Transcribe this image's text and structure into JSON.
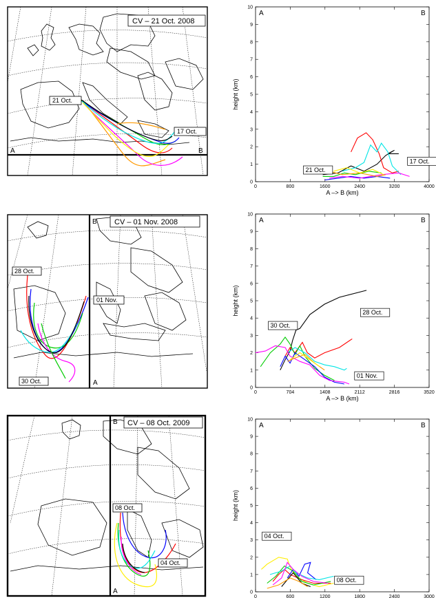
{
  "colors": {
    "black": "#000000",
    "red": "#ff0000",
    "green": "#00cc00",
    "blue": "#0000ff",
    "magenta": "#ff00ff",
    "cyan": "#00e5e5",
    "orange": "#ff9900",
    "yellow": "#ffee00"
  },
  "panels": [
    {
      "map": {
        "title": "CV – 21 Oct. 2008",
        "label_a": "A",
        "label_b": "B",
        "section_orientation": "horizontal",
        "date_start": "21 Oct.",
        "date_end": "17 Oct."
      },
      "chart_data": {
        "type": "line",
        "corner_a": "A",
        "corner_b": "B",
        "xlabel": "A –> B (km)",
        "ylabel": "height (km)",
        "xlim": [
          0,
          4000
        ],
        "ylim": [
          0,
          10
        ],
        "xticks": [
          "0",
          "800",
          "1600",
          "2400",
          "3200",
          "4000"
        ],
        "yticks": [
          "0",
          "1",
          "2",
          "3",
          "4",
          "5",
          "6",
          "7",
          "8",
          "9",
          "10"
        ],
        "annotations": [
          {
            "text": "21 Oct.",
            "x": 1150,
            "y": 0.55
          },
          {
            "text": "17 Oct.",
            "x": 3550,
            "y": 1.05
          }
        ],
        "series": [
          {
            "color": "black",
            "points": [
              [
                1550,
                0.4
              ],
              [
                1900,
                0.5
              ],
              [
                2200,
                0.9
              ],
              [
                2500,
                0.6
              ],
              [
                2800,
                1.0
              ],
              [
                3000,
                1.5
              ],
              [
                3200,
                1.8
              ],
              [
                3050,
                1.6
              ],
              [
                3300,
                1.6
              ]
            ]
          },
          {
            "color": "red",
            "points": [
              [
                2200,
                1.7
              ],
              [
                2350,
                2.5
              ],
              [
                2550,
                2.8
              ],
              [
                2700,
                2.4
              ],
              [
                2850,
                1.6
              ],
              [
                2950,
                0.8
              ],
              [
                3150,
                0.5
              ],
              [
                3300,
                0.6
              ]
            ]
          },
          {
            "color": "cyan",
            "points": [
              [
                2000,
                0.6
              ],
              [
                2300,
                0.8
              ],
              [
                2500,
                1.1
              ],
              [
                2650,
                2.1
              ],
              [
                2800,
                1.7
              ],
              [
                2900,
                2.2
              ],
              [
                3050,
                1.7
              ],
              [
                3150,
                0.9
              ],
              [
                3350,
                0.4
              ]
            ]
          },
          {
            "color": "green",
            "points": [
              [
                1550,
                0.3
              ],
              [
                1800,
                0.3
              ],
              [
                2050,
                0.5
              ],
              [
                2300,
                0.4
              ],
              [
                2600,
                0.6
              ],
              [
                2900,
                0.5
              ]
            ]
          },
          {
            "color": "blue",
            "points": [
              [
                1600,
                0.1
              ],
              [
                1900,
                0.2
              ],
              [
                2200,
                0.3
              ],
              [
                2500,
                0.2
              ],
              [
                2800,
                0.3
              ],
              [
                3100,
                0.2
              ]
            ]
          },
          {
            "color": "magenta",
            "points": [
              [
                1700,
                0.2
              ],
              [
                2000,
                0.3
              ],
              [
                2400,
                0.2
              ],
              [
                2900,
                0.4
              ],
              [
                3300,
                0.5
              ],
              [
                3550,
                0.3
              ]
            ]
          },
          {
            "color": "orange",
            "points": [
              [
                1450,
                0.9
              ],
              [
                1700,
                0.6
              ],
              [
                2000,
                0.4
              ],
              [
                2400,
                0.5
              ],
              [
                2800,
                0.3
              ],
              [
                3000,
                0.4
              ]
            ]
          },
          {
            "color": "yellow",
            "points": [
              [
                1800,
                0.6
              ],
              [
                2100,
                0.8
              ],
              [
                2400,
                0.5
              ],
              [
                2700,
                0.7
              ],
              [
                2950,
                0.4
              ]
            ]
          }
        ]
      }
    },
    {
      "map": {
        "title": "CV – 01 Nov. 2008",
        "label_a": "A",
        "label_b": "B",
        "section_orientation": "vertical",
        "date_start": "01 Nov.",
        "date_end": "28 Oct.",
        "date_other": "30 Oct."
      },
      "chart_data": {
        "type": "line",
        "corner_a": "A",
        "corner_b": "B",
        "xlabel": "A –> B (km)",
        "ylabel": "height (km)",
        "xlim": [
          0,
          3520
        ],
        "ylim": [
          0,
          10
        ],
        "xticks": [
          "0",
          "704",
          "1408",
          "2112",
          "2816",
          "3520"
        ],
        "yticks": [
          "0",
          "1",
          "2",
          "3",
          "4",
          "5",
          "6",
          "7",
          "8",
          "9",
          "10"
        ],
        "annotations": [
          {
            "text": "30 Oct.",
            "x": 300,
            "y": 3.45
          },
          {
            "text": "28 Oct.",
            "x": 2170,
            "y": 4.2
          },
          {
            "text": "01 Nov.",
            "x": 2050,
            "y": 0.55
          }
        ],
        "series": [
          {
            "color": "black",
            "points": [
              [
                500,
                1.0
              ],
              [
                600,
                1.6
              ],
              [
                700,
                2.1
              ],
              [
                750,
                2.7
              ],
              [
                820,
                3.3
              ],
              [
                900,
                3.4
              ],
              [
                1100,
                4.2
              ],
              [
                1400,
                4.8
              ],
              [
                1700,
                5.2
              ],
              [
                2250,
                5.6
              ]
            ]
          },
          {
            "color": "red",
            "points": [
              [
                600,
                1.8
              ],
              [
                700,
                2.3
              ],
              [
                800,
                2.0
              ],
              [
                950,
                2.6
              ],
              [
                1050,
                2.0
              ],
              [
                1200,
                1.7
              ],
              [
                1400,
                2.0
              ],
              [
                1700,
                2.3
              ],
              [
                1960,
                2.8
              ]
            ]
          },
          {
            "color": "green",
            "points": [
              [
                100,
                1.2
              ],
              [
                300,
                2.0
              ],
              [
                500,
                2.5
              ],
              [
                600,
                2.9
              ],
              [
                700,
                2.5
              ],
              [
                800,
                1.9
              ],
              [
                900,
                2.4
              ],
              [
                1000,
                1.8
              ],
              [
                1200,
                1.1
              ],
              [
                1400,
                0.7
              ],
              [
                1600,
                0.4
              ]
            ]
          },
          {
            "color": "cyan",
            "points": [
              [
                650,
                2.0
              ],
              [
                800,
                2.3
              ],
              [
                1000,
                2.0
              ],
              [
                1200,
                1.5
              ],
              [
                1400,
                1.3
              ],
              [
                1600,
                1.2
              ],
              [
                1800,
                1.0
              ],
              [
                1850,
                1.1
              ]
            ]
          },
          {
            "color": "blue",
            "points": [
              [
                500,
                1.2
              ],
              [
                600,
                1.8
              ],
              [
                700,
                1.4
              ],
              [
                800,
                2.0
              ],
              [
                1000,
                1.6
              ],
              [
                1200,
                1.2
              ],
              [
                1400,
                0.6
              ],
              [
                1600,
                0.3
              ],
              [
                1800,
                0.2
              ]
            ]
          },
          {
            "color": "magenta",
            "points": [
              [
                0,
                2.0
              ],
              [
                200,
                2.1
              ],
              [
                400,
                2.4
              ],
              [
                600,
                2.3
              ],
              [
                700,
                1.8
              ],
              [
                900,
                1.5
              ],
              [
                1100,
                1.3
              ],
              [
                1300,
                0.7
              ],
              [
                1500,
                0.4
              ],
              [
                1800,
                0.3
              ],
              [
                1900,
                0.2
              ]
            ]
          },
          {
            "color": "orange",
            "points": [
              [
                650,
                1.5
              ],
              [
                800,
                1.7
              ],
              [
                1000,
                1.9
              ],
              [
                1200,
                1.4
              ],
              [
                1400,
                1.0
              ]
            ]
          },
          {
            "color": "yellow",
            "points": [
              [
                700,
                1.6
              ],
              [
                900,
                2.0
              ],
              [
                1100,
                1.6
              ],
              [
                1300,
                1.2
              ]
            ]
          }
        ]
      }
    },
    {
      "map": {
        "title": "CV – 08 Oct. 2009",
        "label_a": "A",
        "label_b": "B",
        "section_orientation": "vertical",
        "date_start": "08 Oct.",
        "date_end": "04 Oct."
      },
      "chart_data": {
        "type": "line",
        "corner_a": "A",
        "corner_b": "B",
        "xlabel": "",
        "ylabel": "height (km)",
        "xlim": [
          0,
          3000
        ],
        "ylim": [
          0,
          10
        ],
        "xticks": [
          "0",
          "600",
          "1200",
          "1800",
          "2400",
          "3000"
        ],
        "yticks": [
          "0",
          "1",
          "2",
          "3",
          "4",
          "5",
          "6",
          "7",
          "8",
          "9",
          "10"
        ],
        "annotations": [
          {
            "text": "04 Oct.",
            "x": 150,
            "y": 3.1
          },
          {
            "text": "08 Oct.",
            "x": 1400,
            "y": 0.55
          }
        ],
        "series": [
          {
            "color": "yellow",
            "points": [
              [
                100,
                1.3
              ],
              [
                200,
                1.6
              ],
              [
                400,
                2.0
              ],
              [
                550,
                1.9
              ],
              [
                600,
                1.4
              ],
              [
                700,
                0.9
              ],
              [
                900,
                0.5
              ],
              [
                1100,
                0.3
              ],
              [
                1350,
                0.5
              ]
            ]
          },
          {
            "color": "red",
            "points": [
              [
                300,
                0.6
              ],
              [
                400,
                1.0
              ],
              [
                500,
                1.3
              ],
              [
                600,
                1.0
              ],
              [
                800,
                0.7
              ],
              [
                1000,
                0.5
              ],
              [
                1300,
                0.5
              ]
            ]
          },
          {
            "color": "green",
            "points": [
              [
                200,
                0.5
              ],
              [
                350,
                0.9
              ],
              [
                500,
                1.5
              ],
              [
                650,
                1.2
              ],
              [
                800,
                0.6
              ],
              [
                1000,
                0.4
              ],
              [
                1300,
                0.6
              ]
            ]
          },
          {
            "color": "blue",
            "points": [
              [
                550,
                0.8
              ],
              [
                650,
                1.3
              ],
              [
                750,
                0.9
              ],
              [
                850,
                1.6
              ],
              [
                950,
                1.7
              ],
              [
                900,
                1.1
              ],
              [
                1050,
                0.7
              ]
            ]
          },
          {
            "color": "cyan",
            "points": [
              [
                250,
                1.0
              ],
              [
                450,
                1.2
              ],
              [
                600,
                1.5
              ],
              [
                700,
                1.1
              ],
              [
                900,
                0.8
              ],
              [
                1100,
                0.7
              ],
              [
                1350,
                0.9
              ]
            ]
          },
          {
            "color": "magenta",
            "points": [
              [
                300,
                0.4
              ],
              [
                450,
                0.8
              ],
              [
                550,
                1.7
              ],
              [
                650,
                1.3
              ],
              [
                800,
                0.9
              ],
              [
                1000,
                0.6
              ],
              [
                1250,
                0.5
              ]
            ]
          },
          {
            "color": "black",
            "points": [
              [
                450,
                0.3
              ],
              [
                550,
                0.7
              ],
              [
                650,
                1.1
              ],
              [
                800,
                0.5
              ],
              [
                950,
                0.3
              ]
            ]
          },
          {
            "color": "orange",
            "points": [
              [
                200,
                0.2
              ],
              [
                400,
                0.4
              ],
              [
                600,
                0.8
              ],
              [
                750,
                0.6
              ],
              [
                900,
                0.3
              ]
            ]
          }
        ]
      }
    }
  ]
}
